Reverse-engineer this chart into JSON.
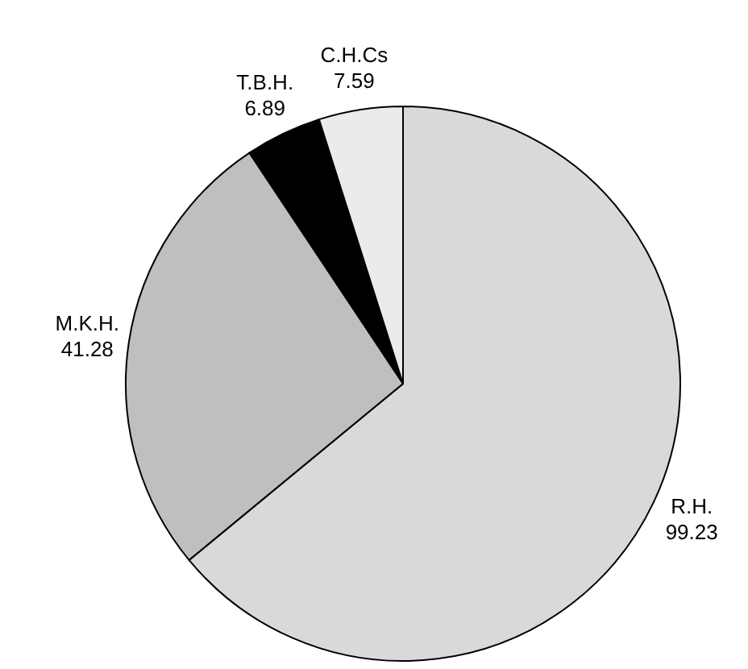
{
  "chart_data": {
    "type": "pie",
    "categories": [
      "R.H.",
      "M.K.H.",
      "T.B.H.",
      "C.H.Cs"
    ],
    "values": [
      99.23,
      41.28,
      6.89,
      7.59
    ],
    "colors": [
      "#d9d9d9",
      "#bfbfbf",
      "#000000",
      "#ebebeb"
    ],
    "data_labels": true
  }
}
